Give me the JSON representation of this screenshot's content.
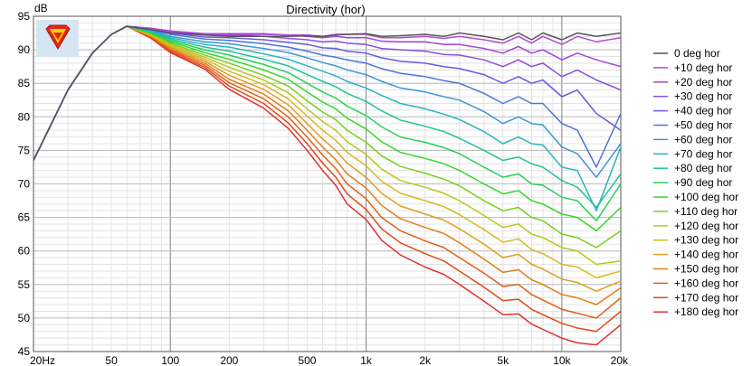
{
  "chart_data": {
    "type": "line",
    "title": "Directivity (hor)",
    "ylabel": "dB",
    "xlabel": "",
    "xscale": "log",
    "xlim": [
      20,
      20000
    ],
    "ylim": [
      45,
      95
    ],
    "grid": true,
    "legend_placement": "right",
    "x_ticks": [
      {
        "value": 20,
        "label": "20Hz"
      },
      {
        "value": 50,
        "label": "50"
      },
      {
        "value": 100,
        "label": "100"
      },
      {
        "value": 200,
        "label": "200"
      },
      {
        "value": 500,
        "label": "500"
      },
      {
        "value": 1000,
        "label": "1k"
      },
      {
        "value": 2000,
        "label": "2k"
      },
      {
        "value": 5000,
        "label": "5k"
      },
      {
        "value": 10000,
        "label": "10k"
      },
      {
        "value": 20000,
        "label": "20k"
      }
    ],
    "y_ticks": [
      95,
      90,
      85,
      80,
      75,
      70,
      65,
      60,
      55,
      50,
      45
    ],
    "x": [
      20,
      30,
      40,
      50,
      60,
      80,
      100,
      150,
      200,
      300,
      400,
      500,
      600,
      700,
      800,
      1000,
      1200,
      1500,
      2000,
      2500,
      3000,
      4000,
      5000,
      6000,
      7000,
      8000,
      10000,
      12000,
      15000,
      20000
    ],
    "series": [
      {
        "name": "0 deg hor",
        "color": "#555555",
        "values": [
          73.5,
          84,
          89.5,
          92.3,
          93.5,
          93,
          92.5,
          92.2,
          92,
          92,
          92,
          92.1,
          92,
          92.2,
          92.3,
          92.4,
          92,
          92.1,
          92.3,
          92,
          92.5,
          92,
          91.5,
          92.5,
          91.5,
          92.5,
          91.5,
          92.5,
          92,
          92.5
        ]
      },
      {
        "name": "+10 deg hor",
        "color": "#b04bd8",
        "values": [
          73.5,
          84,
          89.5,
          92.3,
          93.5,
          93.1,
          92.6,
          92.3,
          92.2,
          92.3,
          92.2,
          92.2,
          92,
          92.3,
          92.3,
          92.3,
          91.8,
          91.8,
          92,
          91.7,
          92,
          91.5,
          91,
          92,
          91,
          92,
          90.8,
          92,
          91.2,
          91.8
        ]
      },
      {
        "name": "+20 deg hor",
        "color": "#a545d8",
        "values": [
          73.5,
          84,
          89.5,
          92.3,
          93.5,
          93.2,
          92.8,
          92.4,
          92.4,
          92.4,
          92.2,
          92,
          91.8,
          92,
          91.8,
          91.8,
          91.3,
          91.2,
          91.2,
          90.8,
          90.8,
          90.2,
          89.5,
          90.5,
          89.5,
          90,
          88.5,
          89.5,
          88.5,
          87.5
        ]
      },
      {
        "name": "+30 deg hor",
        "color": "#8a4fe0",
        "values": [
          73.5,
          84,
          89.5,
          92.3,
          93.5,
          93.2,
          92.7,
          92.2,
          92.2,
          92,
          91.7,
          91.5,
          91.2,
          91.3,
          91,
          90.8,
          90.2,
          90,
          89.8,
          89.3,
          89.2,
          88.5,
          87.5,
          88.5,
          87.5,
          88,
          86,
          87,
          85.5,
          84
        ]
      },
      {
        "name": "+40 deg hor",
        "color": "#6a5ae0",
        "values": [
          73.5,
          84,
          89.5,
          92.3,
          93.5,
          93.1,
          92.5,
          91.9,
          91.8,
          91.5,
          91.1,
          90.8,
          90.3,
          90.2,
          89.8,
          89.5,
          88.8,
          88.3,
          88,
          87.5,
          87.2,
          86.3,
          85,
          86,
          85,
          85.5,
          83,
          84,
          80.5,
          78
        ]
      },
      {
        "name": "+50 deg hor",
        "color": "#4c74e0",
        "values": [
          73.5,
          84,
          89.5,
          92.3,
          93.5,
          93,
          92.3,
          91.6,
          91.4,
          90.9,
          90.4,
          89.8,
          89.2,
          88.9,
          88.5,
          88,
          87.2,
          86.5,
          86,
          85.4,
          85,
          83.5,
          82,
          83,
          82,
          82,
          79,
          78,
          72.5,
          80.5
        ]
      },
      {
        "name": "+60 deg hor",
        "color": "#3d97d8",
        "values": [
          73.5,
          84,
          89.5,
          92.3,
          93.5,
          92.9,
          92,
          91.2,
          90.9,
          90.2,
          89.6,
          88.8,
          88.1,
          87.6,
          87,
          86.3,
          85.3,
          84.3,
          83.7,
          83,
          82.5,
          80.8,
          79,
          80,
          79,
          78.8,
          75.5,
          74.5,
          71,
          76
        ]
      },
      {
        "name": "+70 deg hor",
        "color": "#2ab5c0",
        "values": [
          73.5,
          84,
          89.5,
          92.3,
          93.5,
          92.8,
          91.8,
          90.8,
          90.4,
          89.4,
          88.6,
          87.6,
          86.8,
          86.1,
          85.3,
          84.3,
          83.2,
          82,
          81.2,
          80.4,
          79.6,
          77.8,
          76,
          77,
          76,
          75.8,
          72.5,
          72,
          66,
          75.5
        ]
      },
      {
        "name": "+80 deg hor",
        "color": "#22c29a",
        "values": [
          73.5,
          84,
          89.5,
          92.3,
          93.5,
          92.7,
          91.6,
          90.4,
          89.8,
          88.6,
          87.6,
          86.3,
          85.3,
          84.5,
          83.5,
          82.3,
          80.9,
          79.5,
          78.6,
          77.8,
          76.8,
          75,
          73.5,
          74,
          73,
          72.5,
          70.5,
          69.5,
          66.5,
          71.5
        ]
      },
      {
        "name": "+90 deg hor",
        "color": "#2ad05a",
        "values": [
          73.5,
          84,
          89.5,
          92.3,
          93.5,
          92.6,
          91.4,
          90,
          89.2,
          87.8,
          86.6,
          85,
          83.7,
          82.8,
          81.6,
          80.2,
          78.5,
          77,
          76.2,
          75.4,
          74.5,
          72.5,
          71,
          71.5,
          70,
          69.8,
          68,
          67.5,
          64.5,
          70
        ]
      },
      {
        "name": "+100 deg hor",
        "color": "#38d62a",
        "values": [
          73.5,
          84,
          89.5,
          92.3,
          93.5,
          92.5,
          91.2,
          89.6,
          88.6,
          87,
          85.6,
          83.7,
          82.2,
          81.2,
          79.8,
          78.2,
          76.3,
          74.7,
          73.8,
          73,
          72,
          70,
          68.5,
          69,
          67.5,
          67,
          65.5,
          65,
          63,
          66.5
        ]
      },
      {
        "name": "+110 deg hor",
        "color": "#7ad020",
        "values": [
          73.5,
          84,
          89.5,
          92.3,
          93.5,
          92.4,
          91,
          89.2,
          88,
          86.2,
          84.6,
          82.4,
          80.7,
          79.6,
          78,
          76.2,
          74.2,
          72.6,
          71.6,
          70.7,
          69.7,
          67.5,
          66,
          66.5,
          65,
          64.5,
          62.5,
          62,
          60.5,
          63
        ]
      },
      {
        "name": "+120 deg hor",
        "color": "#b8c81c",
        "values": [
          73.5,
          84,
          89.5,
          92.3,
          93.5,
          92.3,
          90.8,
          88.9,
          87.4,
          85.5,
          83.6,
          81.2,
          79.3,
          78,
          76.3,
          74.4,
          72.2,
          70.5,
          69.5,
          68.6,
          67.5,
          65.3,
          63.5,
          64,
          62.5,
          62,
          60.5,
          60,
          58,
          58.5
        ]
      },
      {
        "name": "+130 deg hor",
        "color": "#d8b820",
        "values": [
          73.5,
          84,
          89.5,
          92.3,
          93.5,
          92.2,
          90.6,
          88.6,
          86.8,
          84.8,
          82.7,
          80.1,
          78,
          76.5,
          74.7,
          72.7,
          70.4,
          68.6,
          67.5,
          66.6,
          65.4,
          63.2,
          61.3,
          61.8,
          60.2,
          59.6,
          58,
          57.6,
          56,
          57
        ]
      },
      {
        "name": "+140 deg hor",
        "color": "#e0a020",
        "values": [
          73.5,
          84,
          89.5,
          92.3,
          93.5,
          92.1,
          90.4,
          88.3,
          86.2,
          84.1,
          81.8,
          79,
          76.7,
          75,
          73.1,
          71,
          68.6,
          66.7,
          65.5,
          64.6,
          63.3,
          61,
          59,
          59.5,
          58,
          57.3,
          55.8,
          55.3,
          54,
          55.5
        ]
      },
      {
        "name": "+150 deg hor",
        "color": "#e08018",
        "values": [
          73.5,
          84,
          89.5,
          92.3,
          93.5,
          92,
          90.2,
          88,
          85.6,
          83.4,
          80.9,
          78,
          75.5,
          73.6,
          71.5,
          69.4,
          66.8,
          64.8,
          63.5,
          62.6,
          61.2,
          58.8,
          56.8,
          57.2,
          55.7,
          55,
          53.5,
          53,
          52,
          54.5
        ]
      },
      {
        "name": "+160 deg hor",
        "color": "#e06018",
        "values": [
          73.5,
          84,
          89.5,
          92.3,
          93.5,
          91.9,
          90,
          87.7,
          85.1,
          82.7,
          80,
          77,
          74.3,
          72.3,
          70,
          67.8,
          65,
          63,
          61.5,
          60.5,
          59,
          56.7,
          54.7,
          55,
          53.5,
          52.7,
          51.3,
          50.7,
          50,
          53
        ]
      },
      {
        "name": "+170 deg hor",
        "color": "#e04a18",
        "values": [
          73.5,
          84,
          89.5,
          92.3,
          93.5,
          91.8,
          89.8,
          87.4,
          84.6,
          82,
          79.1,
          76,
          73.1,
          71,
          68.5,
          66.2,
          63.3,
          61.2,
          59.6,
          58.5,
          57,
          54.6,
          52.6,
          52.8,
          51.3,
          50.5,
          49.2,
          48.5,
          48,
          51
        ]
      },
      {
        "name": "+180 deg hor",
        "color": "#e03030",
        "values": [
          73.5,
          84,
          89.5,
          92.3,
          93.5,
          91.7,
          89.6,
          87.1,
          84.1,
          81.3,
          78.3,
          75,
          72,
          69.8,
          67,
          64.7,
          61.6,
          59.4,
          57.6,
          56.5,
          55,
          52.5,
          50.5,
          50.6,
          49.1,
          48.3,
          47,
          46.3,
          46,
          49
        ]
      }
    ]
  },
  "logo": {
    "icon": "superman-shield-icon",
    "colors": [
      "#e52420",
      "#f5d000",
      "#1a4fb0"
    ]
  }
}
